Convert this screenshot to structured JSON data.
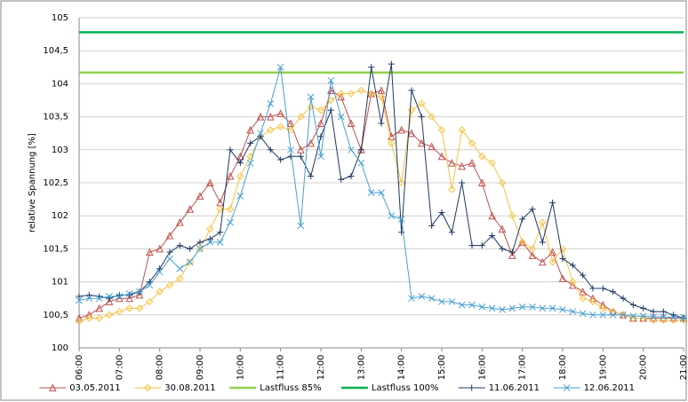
{
  "chart_data": {
    "type": "line",
    "y_label": "relative Spannung [%]",
    "categories": [
      "06:00",
      null,
      null,
      null,
      "07:00",
      null,
      null,
      null,
      "08:00",
      null,
      null,
      null,
      "09:00",
      null,
      null,
      null,
      "10:00",
      null,
      null,
      null,
      "11:00",
      null,
      null,
      null,
      "12:00",
      null,
      null,
      null,
      "13:00",
      null,
      null,
      null,
      "14:00",
      null,
      null,
      null,
      "15:00",
      null,
      null,
      null,
      "16:00",
      null,
      null,
      null,
      "17:00",
      null,
      null,
      null,
      "18:00",
      null,
      null,
      null,
      "19:00",
      null,
      null,
      null,
      "20:00",
      null,
      null,
      null,
      "21:00"
    ],
    "ylim": [
      100,
      105
    ],
    "yticks": [
      100,
      {
        "value": 100.5,
        "label": "100,5"
      },
      101,
      {
        "value": 101.5,
        "label": "101,5"
      },
      102,
      {
        "value": 102.5,
        "label": "102,5"
      },
      103,
      {
        "value": 103.5,
        "label": "103,5"
      },
      104,
      {
        "value": 104.5,
        "label": "104,5"
      },
      105
    ],
    "grid": true,
    "legend": "bottom",
    "series": [
      {
        "name": "03.05.2011",
        "color": "#c0504d",
        "marker": "triangle",
        "values": [
          100.45,
          100.5,
          100.6,
          100.7,
          100.75,
          100.75,
          100.8,
          101.45,
          101.5,
          101.7,
          101.9,
          102.1,
          102.3,
          102.5,
          102.2,
          102.6,
          102.9,
          103.3,
          103.5,
          103.5,
          103.55,
          103.4,
          103.0,
          103.1,
          103.4,
          103.9,
          103.8,
          103.4,
          103.0,
          103.85,
          103.9,
          103.2,
          103.3,
          103.25,
          103.1,
          103.05,
          102.9,
          102.8,
          102.75,
          102.8,
          102.5,
          102.0,
          101.8,
          101.4,
          101.6,
          101.4,
          101.3,
          101.45,
          101.05,
          100.95,
          100.85,
          100.75,
          100.65,
          100.55,
          100.5,
          100.45,
          100.45,
          100.45,
          100.45,
          100.45,
          100.45
        ]
      },
      {
        "name": "30.08.2011",
        "color": "#f7c342",
        "marker": "diamond",
        "values": [
          100.4,
          100.45,
          100.45,
          100.5,
          100.55,
          100.6,
          100.6,
          100.7,
          100.85,
          100.95,
          101.05,
          101.3,
          101.5,
          101.8,
          102.1,
          102.1,
          102.6,
          102.9,
          103.2,
          103.3,
          103.35,
          103.3,
          103.5,
          103.65,
          103.6,
          103.75,
          103.85,
          103.85,
          103.9,
          103.85,
          103.8,
          103.1,
          102.5,
          103.6,
          103.7,
          103.5,
          103.3,
          102.4,
          103.3,
          103.1,
          102.9,
          102.8,
          102.5,
          102.0,
          101.6,
          101.5,
          101.9,
          101.3,
          101.5,
          101.0,
          100.75,
          100.7,
          100.6,
          100.55,
          100.5,
          100.45,
          100.45,
          100.42,
          100.42,
          100.42,
          100.42
        ]
      },
      {
        "name": "Lastfluss 85%",
        "color": "#92d050",
        "marker": "none",
        "values": [
          104.17,
          104.17,
          104.17,
          104.17,
          104.17,
          104.17,
          104.17,
          104.17,
          104.17,
          104.17,
          104.17,
          104.17,
          104.17,
          104.17,
          104.17,
          104.17,
          104.17,
          104.17,
          104.17,
          104.17,
          104.17,
          104.17,
          104.17,
          104.17,
          104.17,
          104.17,
          104.17,
          104.17,
          104.17,
          104.17,
          104.17,
          104.17,
          104.17,
          104.17,
          104.17,
          104.17,
          104.17,
          104.17,
          104.17,
          104.17,
          104.17,
          104.17,
          104.17,
          104.17,
          104.17,
          104.17,
          104.17,
          104.17,
          104.17,
          104.17,
          104.17,
          104.17,
          104.17,
          104.17,
          104.17,
          104.17,
          104.17,
          104.17,
          104.17,
          104.17,
          104.17
        ]
      },
      {
        "name": "Lastfluss 100%",
        "color": "#00b050",
        "marker": "none",
        "values": [
          104.78,
          104.78,
          104.78,
          104.78,
          104.78,
          104.78,
          104.78,
          104.78,
          104.78,
          104.78,
          104.78,
          104.78,
          104.78,
          104.78,
          104.78,
          104.78,
          104.78,
          104.78,
          104.78,
          104.78,
          104.78,
          104.78,
          104.78,
          104.78,
          104.78,
          104.78,
          104.78,
          104.78,
          104.78,
          104.78,
          104.78,
          104.78,
          104.78,
          104.78,
          104.78,
          104.78,
          104.78,
          104.78,
          104.78,
          104.78,
          104.78,
          104.78,
          104.78,
          104.78,
          104.78,
          104.78,
          104.78,
          104.78,
          104.78,
          104.78,
          104.78,
          104.78,
          104.78,
          104.78,
          104.78,
          104.78,
          104.78,
          104.78,
          104.78,
          104.78,
          104.78
        ]
      },
      {
        "name": "11.06.2011",
        "color": "#1f3864",
        "marker": "plus",
        "values": [
          100.78,
          100.8,
          100.78,
          100.75,
          100.8,
          100.8,
          100.85,
          101.0,
          101.2,
          101.45,
          101.55,
          101.5,
          101.6,
          101.65,
          101.75,
          103.0,
          102.8,
          103.1,
          103.2,
          103.0,
          102.85,
          102.9,
          102.9,
          102.6,
          103.2,
          103.6,
          102.55,
          102.6,
          103.0,
          104.25,
          103.4,
          104.3,
          101.75,
          103.9,
          103.5,
          101.85,
          102.05,
          101.75,
          102.5,
          101.55,
          101.55,
          101.7,
          101.5,
          101.45,
          101.95,
          102.1,
          101.6,
          102.2,
          101.35,
          101.25,
          101.1,
          100.9,
          100.9,
          100.85,
          100.75,
          100.65,
          100.6,
          100.55,
          100.55,
          100.5,
          100.45
        ]
      },
      {
        "name": "12.06.2011",
        "color": "#4a9fd5",
        "marker": "x",
        "values": [
          100.72,
          100.75,
          100.75,
          100.78,
          100.78,
          100.82,
          100.85,
          100.95,
          101.15,
          101.35,
          101.2,
          101.3,
          101.5,
          101.6,
          101.6,
          101.9,
          102.3,
          102.8,
          103.25,
          103.7,
          104.25,
          103.0,
          101.85,
          103.8,
          102.9,
          104.05,
          103.5,
          103.0,
          102.8,
          102.35,
          102.35,
          102.0,
          101.95,
          100.75,
          100.78,
          100.75,
          100.7,
          100.7,
          100.65,
          100.65,
          100.62,
          100.6,
          100.58,
          100.6,
          100.62,
          100.62,
          100.6,
          100.6,
          100.58,
          100.55,
          100.52,
          100.5,
          100.5,
          100.5,
          100.5,
          100.48,
          100.48,
          100.47,
          100.47,
          100.46,
          100.46
        ]
      }
    ]
  }
}
